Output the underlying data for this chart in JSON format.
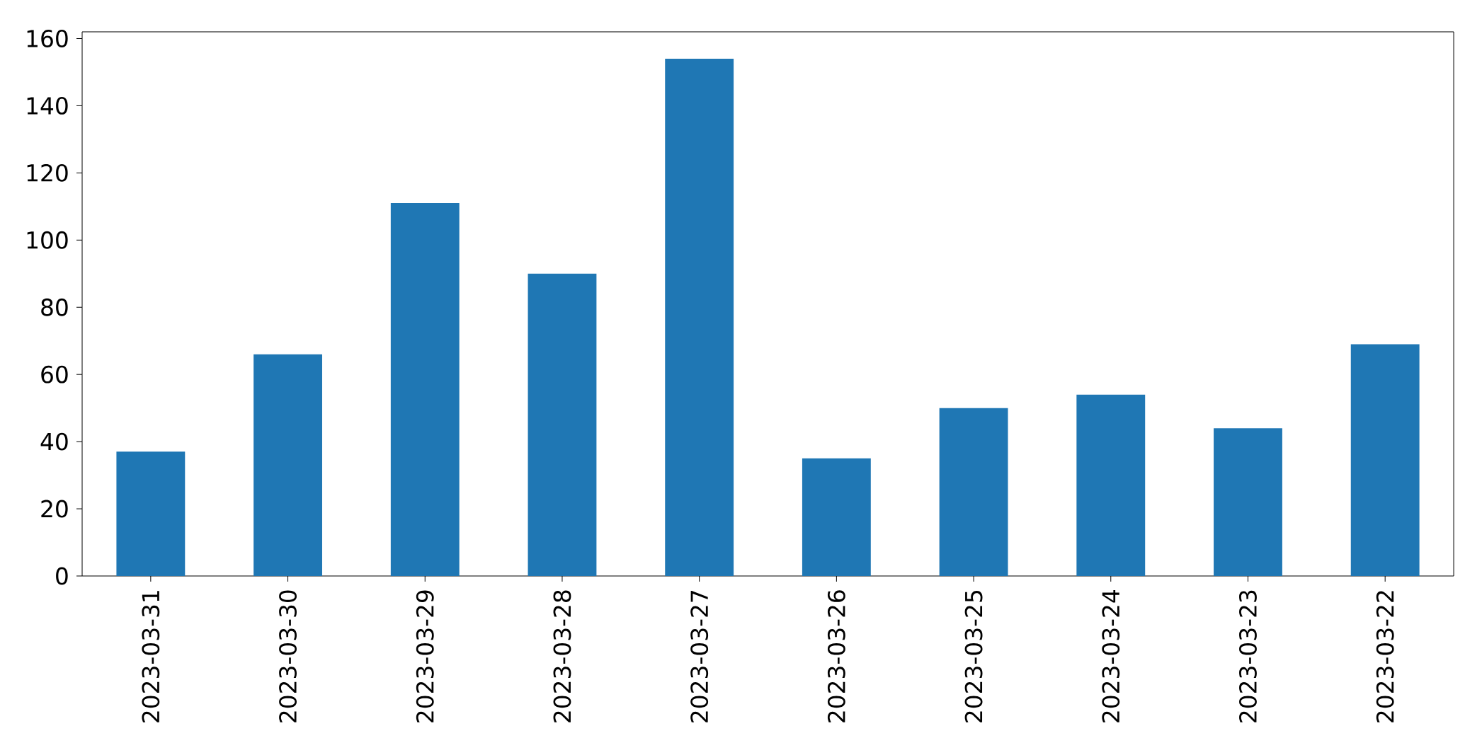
{
  "chart_data": {
    "type": "bar",
    "categories": [
      "2023-03-31",
      "2023-03-30",
      "2023-03-29",
      "2023-03-28",
      "2023-03-27",
      "2023-03-26",
      "2023-03-25",
      "2023-03-24",
      "2023-03-23",
      "2023-03-22"
    ],
    "values": [
      37,
      66,
      111,
      90,
      154,
      35,
      50,
      54,
      44,
      69
    ],
    "color": "#1f77b4",
    "ylim": [
      0,
      162
    ],
    "yticks": [
      0,
      20,
      40,
      60,
      80,
      100,
      120,
      140,
      160
    ],
    "grid": false
  }
}
